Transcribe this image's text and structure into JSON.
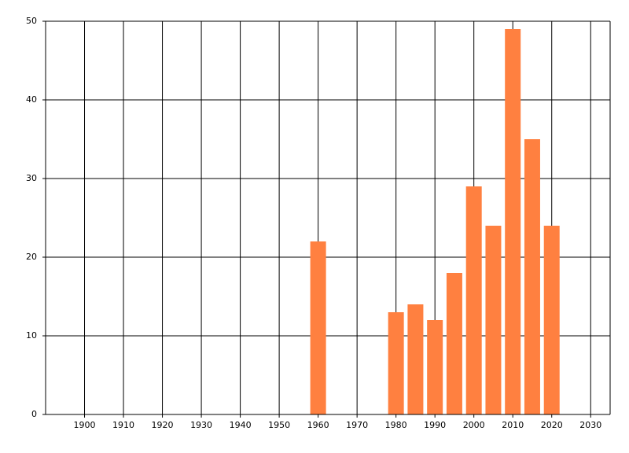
{
  "chart_data": {
    "type": "bar",
    "x": [
      1960,
      1980,
      1985,
      1990,
      1995,
      2000,
      2005,
      2010,
      2015,
      2020
    ],
    "values": [
      22,
      13,
      14,
      12,
      18,
      29,
      24,
      49,
      35,
      24
    ],
    "color": "#ff8040",
    "xlim": [
      1890,
      2035
    ],
    "xticks": [
      1900,
      1910,
      1920,
      1930,
      1940,
      1950,
      1960,
      1970,
      1980,
      1990,
      2000,
      2010,
      2020,
      2030
    ],
    "ylim": [
      0,
      50
    ],
    "yticks": [
      0,
      10,
      20,
      30,
      40,
      50
    ],
    "grid": true
  }
}
